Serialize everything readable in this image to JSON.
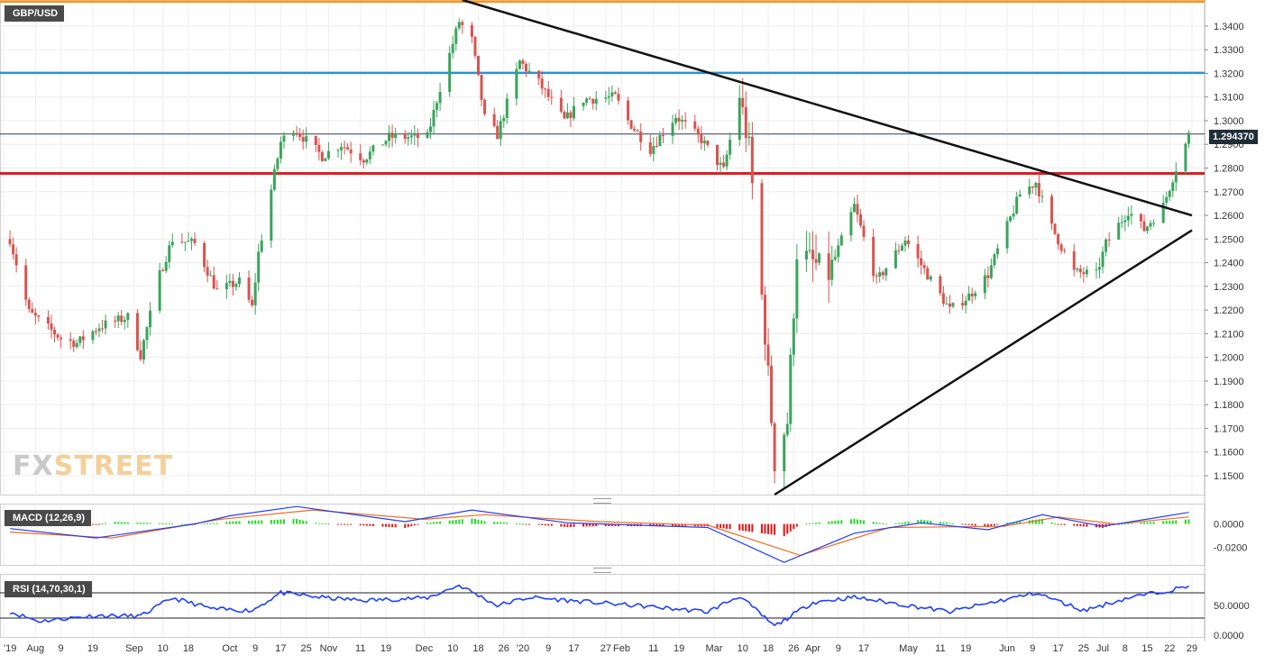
{
  "colors": {
    "up": "#3aa45c",
    "down": "#d9534f",
    "orange_line": "#f7941d",
    "blue_line": "#2b8fd6",
    "red_line": "#dd1f26",
    "trend": "#111111",
    "macd_line": "#1f3fff",
    "signal_line": "#f26b1d",
    "hist_pos": "#22dd22",
    "hist_neg": "#ee1111",
    "rsi_line": "#1f3fff"
  },
  "main": {
    "symbol_label": "GBP/USD",
    "last_price_label": "1.294370",
    "y_ticks": [
      "1.3400",
      "1.3300",
      "1.3200",
      "1.3100",
      "1.3000",
      "1.2900",
      "1.2800",
      "1.2700",
      "1.2600",
      "1.2500",
      "1.2400",
      "1.2300",
      "1.2200",
      "1.2100",
      "1.2000",
      "1.1900",
      "1.1800",
      "1.1700",
      "1.1600",
      "1.1500"
    ],
    "logo_fx": "FX",
    "logo_street": "STREET"
  },
  "macd": {
    "label": "MACD (12,26,9)",
    "y_ticks": [
      "0.0000",
      "-0.0200"
    ]
  },
  "rsi": {
    "label": "RSI (14,70,30,1)",
    "y_ticks": [
      "50.0000",
      "0.0000"
    ]
  },
  "x_axis": {
    "labels": [
      "'19",
      "Aug",
      "9",
      "19",
      "Sep",
      "10",
      "18",
      "Oct",
      "9",
      "17",
      "25",
      "Nov",
      "11",
      "19",
      "Dec",
      "10",
      "18",
      "26",
      "'20",
      "9",
      "17",
      "27",
      "Feb",
      "11",
      "19",
      "Mar",
      "10",
      "18",
      "26",
      "Apr",
      "9",
      "17",
      "May",
      "11",
      "19",
      "Jun",
      "9",
      "17",
      "25",
      "Jul",
      "8",
      "15",
      "22",
      "29"
    ]
  },
  "chart_data": [
    {
      "type": "candlestick",
      "title": "GBP/USD",
      "ylim": [
        1.142,
        1.351
      ],
      "last_price": 1.29437,
      "horizontal_levels": [
        {
          "value": 1.3503,
          "color": "orange"
        },
        {
          "value": 1.3202,
          "color": "blue"
        },
        {
          "value": 1.2777,
          "color": "red"
        }
      ],
      "trendlines": [
        {
          "from": [
            "Dec 13 2019",
            1.351
          ],
          "to": [
            "Jul 29 2020",
            1.26
          ]
        },
        {
          "from": [
            "Mar 20 2020",
            1.142
          ],
          "to": [
            "Jul 29 2020",
            1.2537
          ]
        }
      ],
      "anchors_close": [
        [
          "Jul 24 2019",
          1.25
        ],
        [
          "Jul 30 2019",
          1.219
        ],
        [
          "Aug 9 2019",
          1.208
        ],
        [
          "Aug 14 2019",
          1.206
        ],
        [
          "Aug 21 2019",
          1.213
        ],
        [
          "Aug 30 2019",
          1.217
        ],
        [
          "Sep 3 2019",
          1.201
        ],
        [
          "Sep 9 2019",
          1.235
        ],
        [
          "Sep 13 2019",
          1.25
        ],
        [
          "Sep 20 2019",
          1.248
        ],
        [
          "Sep 27 2019",
          1.228
        ],
        [
          "Oct 4 2019",
          1.232
        ],
        [
          "Oct 8 2019",
          1.221
        ],
        [
          "Oct 10 2019",
          1.244
        ],
        [
          "Oct 17 2019",
          1.291
        ],
        [
          "Oct 21 2019",
          1.297
        ],
        [
          "Oct 30 2019",
          1.285
        ],
        [
          "Nov 5 2019",
          1.29
        ],
        [
          "Nov 12 2019",
          1.284
        ],
        [
          "Nov 20 2019",
          1.293
        ],
        [
          "Dec 2 2019",
          1.293
        ],
        [
          "Dec 6 2019",
          1.314
        ],
        [
          "Dec 12 2019",
          1.342
        ],
        [
          "Dec 16 2019",
          1.334
        ],
        [
          "Dec 20 2019",
          1.301
        ],
        [
          "Dec 24 2019",
          1.294
        ],
        [
          "Dec 31 2019",
          1.325
        ],
        [
          "Jan 6 2020",
          1.316
        ],
        [
          "Jan 14 2020",
          1.3
        ],
        [
          "Jan 20 2020",
          1.309
        ],
        [
          "Jan 30 2020",
          1.31
        ],
        [
          "Feb 3 2020",
          1.3
        ],
        [
          "Feb 10 2020",
          1.288
        ],
        [
          "Feb 18 2020",
          1.302
        ],
        [
          "Feb 26 2020",
          1.292
        ],
        [
          "Mar 4 2020",
          1.279
        ],
        [
          "Mar 9 2020",
          1.311
        ],
        [
          "Mar 12 2020",
          1.288
        ],
        [
          "Mar 17 2020",
          1.21
        ],
        [
          "Mar 20 2020",
          1.156
        ],
        [
          "Mar 24 2020",
          1.173
        ],
        [
          "Mar 27 2020",
          1.245
        ],
        [
          "Apr 6 2020",
          1.235
        ],
        [
          "Apr 14 2020",
          1.264
        ],
        [
          "Apr 21 2020",
          1.232
        ],
        [
          "Apr 30 2020",
          1.25
        ],
        [
          "May 6 2020",
          1.237
        ],
        [
          "May 14 2020",
          1.22
        ],
        [
          "May 20 2020",
          1.226
        ],
        [
          "May 26 2020",
          1.235
        ],
        [
          "Jun 5 2020",
          1.269
        ],
        [
          "Jun 10 2020",
          1.274
        ],
        [
          "Jun 15 2020",
          1.255
        ],
        [
          "Jun 22 2020",
          1.236
        ],
        [
          "Jun 29 2020",
          1.235
        ],
        [
          "Jul 2 2020",
          1.248
        ],
        [
          "Jul 9 2020",
          1.262
        ],
        [
          "Jul 14 2020",
          1.254
        ],
        [
          "Jul 20 2020",
          1.264
        ],
        [
          "Jul 24 2020",
          1.28
        ],
        [
          "Jul 27 2020",
          1.29
        ],
        [
          "Jul 28 2020",
          1.294
        ]
      ]
    },
    {
      "type": "line",
      "title": "MACD (12,26,9)",
      "ylim": [
        -0.0352,
        0.0175
      ],
      "series": [
        {
          "name": "MACD",
          "points": [
            [
              "Jul 24 2019",
              -0.004
            ],
            [
              "Aug 20 2019",
              -0.012
            ],
            [
              "Sep 20 2019",
              0.0
            ],
            [
              "Oct 1 2019",
              0.007
            ],
            [
              "Oct 22 2019",
              0.015
            ],
            [
              "Nov 25 2019",
              0.002
            ],
            [
              "Dec 16 2019",
              0.012
            ],
            [
              "Jan 15 2020",
              0.001
            ],
            [
              "Feb 28 2020",
              -0.003
            ],
            [
              "Mar 23 2020",
              -0.033
            ],
            [
              "Apr 14 2020",
              -0.008
            ],
            [
              "May 5 2020",
              0.001
            ],
            [
              "May 26 2020",
              -0.005
            ],
            [
              "Jun 12 2020",
              0.008
            ],
            [
              "Jul 1 2020",
              -0.002
            ],
            [
              "Jul 28 2020",
              0.01
            ]
          ]
        },
        {
          "name": "Signal",
          "points": [
            [
              "Jul 24 2019",
              -0.007
            ],
            [
              "Aug 25 2019",
              -0.012
            ],
            [
              "Sep 28 2019",
              0.004
            ],
            [
              "Oct 27 2019",
              0.012
            ],
            [
              "Dec 1 2019",
              0.004
            ],
            [
              "Dec 20 2019",
              0.008
            ],
            [
              "Jan 25 2020",
              0.002
            ],
            [
              "Feb 28 2020",
              -0.001
            ],
            [
              "Mar 28 2020",
              -0.027
            ],
            [
              "Apr 25 2020",
              -0.003
            ],
            [
              "May 31 2020",
              -0.002
            ],
            [
              "Jun 17 2020",
              0.006
            ],
            [
              "Jul 5 2020",
              0.0
            ],
            [
              "Jul 28 2020",
              0.006
            ]
          ]
        }
      ]
    },
    {
      "type": "line",
      "title": "RSI (14,70,30,1)",
      "ylim": [
        0,
        100
      ],
      "levels": [
        70,
        30
      ],
      "series": [
        {
          "name": "RSI",
          "points": [
            [
              "Jul 24 2019",
              40
            ],
            [
              "Aug 2 2019",
              25
            ],
            [
              "Aug 20 2019",
              34
            ],
            [
              "Sep 3 2019",
              33
            ],
            [
              "Sep 13 2019",
              62
            ],
            [
              "Sep 26 2019",
              44
            ],
            [
              "Oct 8 2019",
              42
            ],
            [
              "Oct 17 2019",
              70
            ],
            [
              "Oct 31 2019",
              62
            ],
            [
              "Nov 12 2019",
              58
            ],
            [
              "Dec 2 2019",
              62
            ],
            [
              "Dec 12 2019",
              82
            ],
            [
              "Dec 24 2019",
              50
            ],
            [
              "Jan 3 2020",
              63
            ],
            [
              "Jan 20 2020",
              56
            ],
            [
              "Feb 10 2020",
              48
            ],
            [
              "Feb 28 2020",
              40
            ],
            [
              "Mar 9 2020",
              65
            ],
            [
              "Mar 20 2020",
              17
            ],
            [
              "Apr 1 2020",
              55
            ],
            [
              "Apr 14 2020",
              63
            ],
            [
              "May 14 2020",
              40
            ],
            [
              "Jun 10 2020",
              70
            ],
            [
              "Jun 25 2020",
              42
            ],
            [
              "Jul 9 2020",
              62
            ],
            [
              "Jul 28 2020",
              80
            ]
          ]
        }
      ]
    }
  ]
}
